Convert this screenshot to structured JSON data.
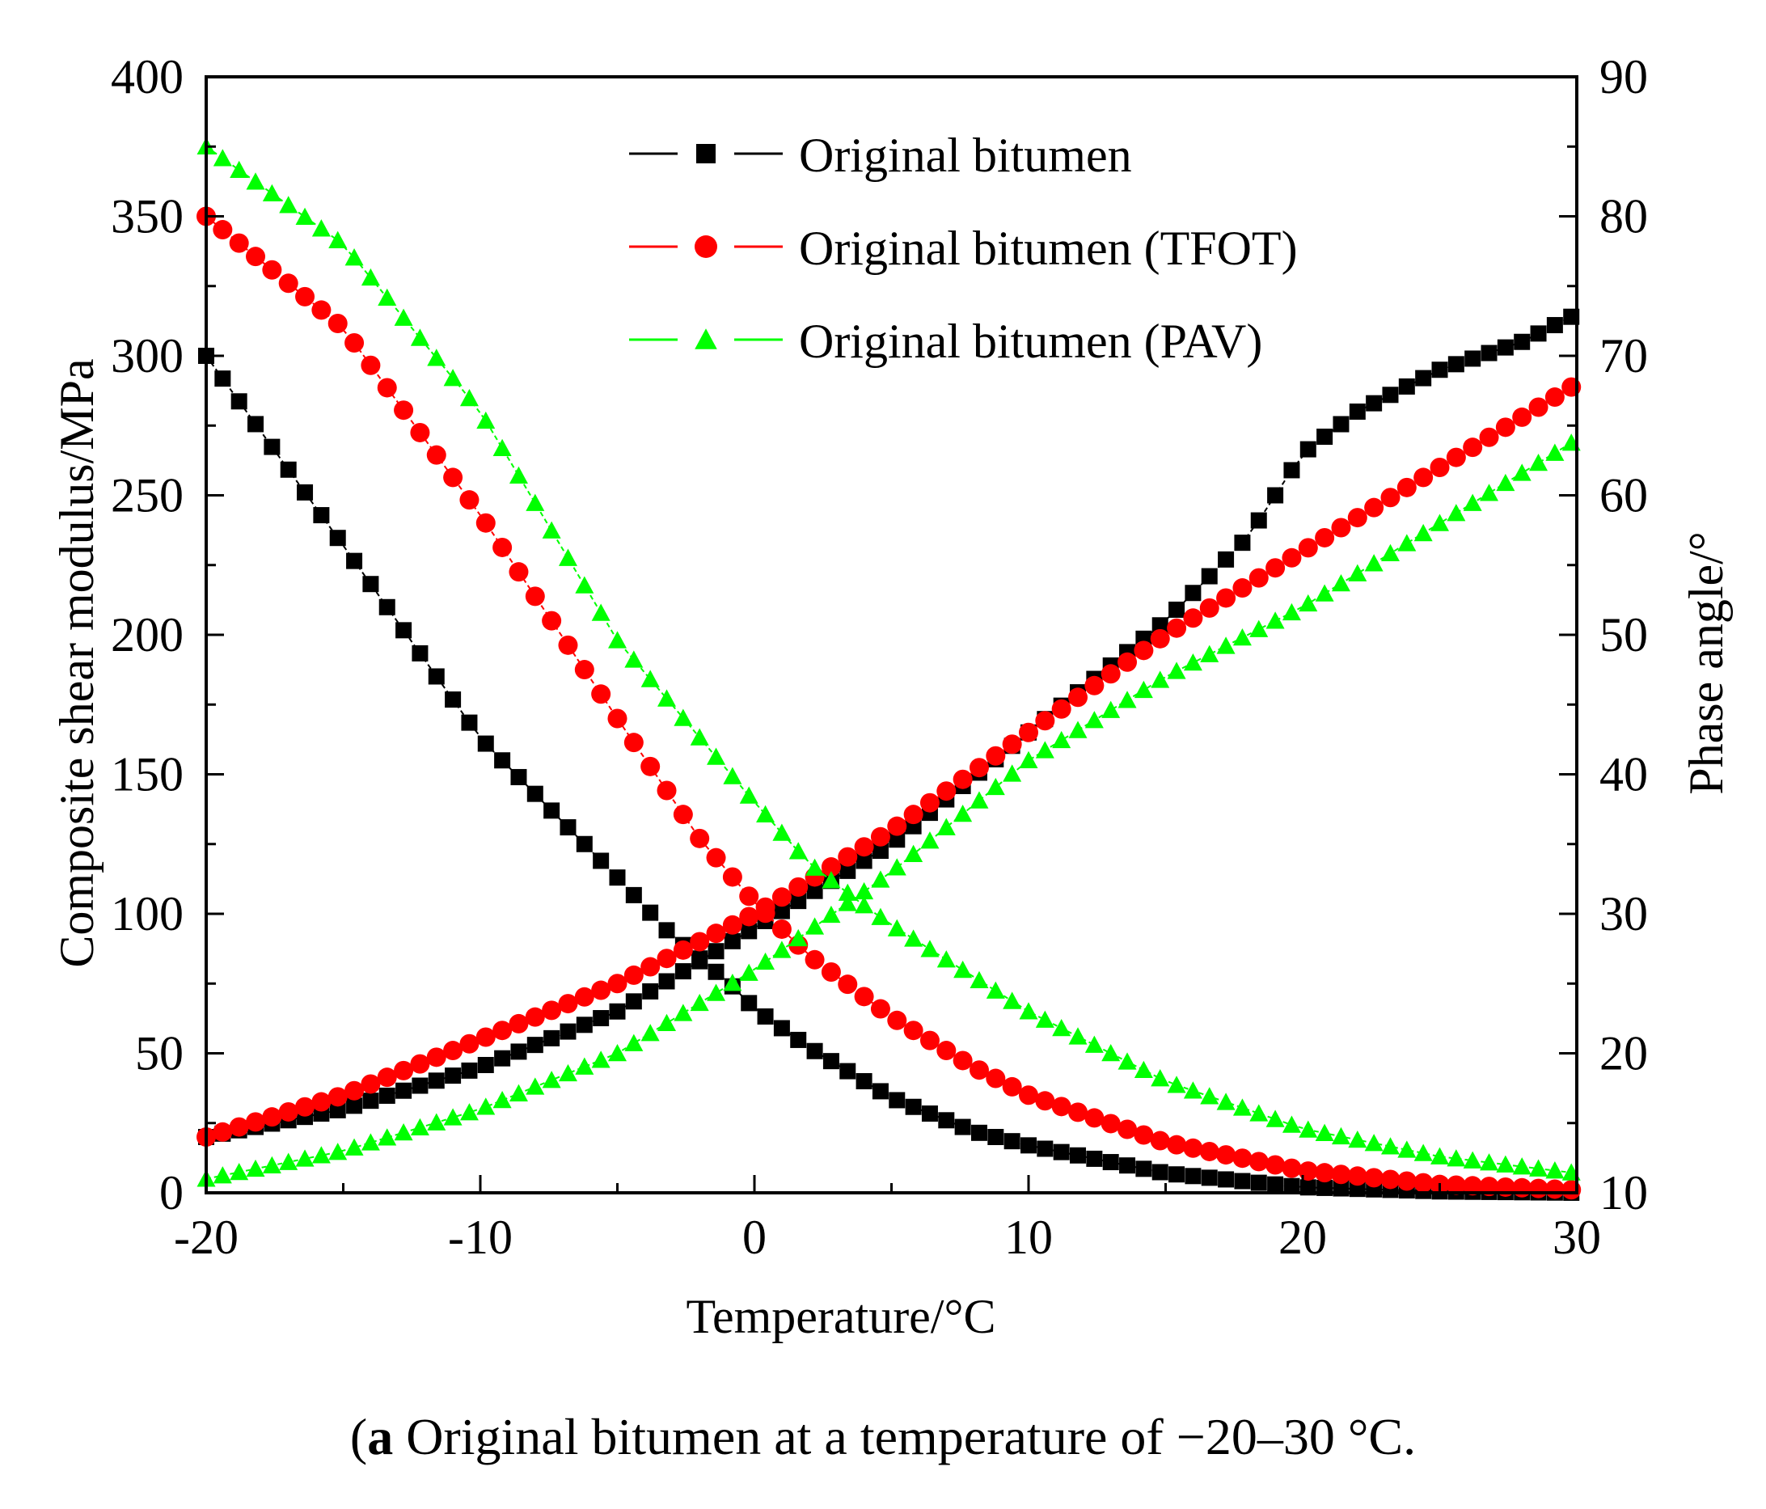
{
  "chart_data": {
    "type": "scatter",
    "title": "",
    "xlabel": "Temperature/°C",
    "ylabel_left": "Composite shear modulus/MPa",
    "ylabel_right": "Phase angle/°",
    "xlim": [
      -20,
      30
    ],
    "ylim_left": [
      0,
      400
    ],
    "ylim_right": [
      10,
      90
    ],
    "x_ticks": [
      "-20",
      "-10",
      "0",
      "10",
      "20",
      "30"
    ],
    "y_left_ticks": [
      "0",
      "50",
      "100",
      "150",
      "200",
      "250",
      "300",
      "350",
      "400"
    ],
    "y_right_ticks": [
      "10",
      "20",
      "30",
      "40",
      "50",
      "60",
      "70",
      "80",
      "90"
    ],
    "legend_position": "top-center",
    "series": [
      {
        "name": "Original bitumen",
        "marker": "square",
        "color": "#000000",
        "modulus": [
          [
            -20,
            300
          ],
          [
            -15,
            232
          ],
          [
            -10,
            163
          ],
          [
            -5,
            113
          ],
          [
            -3,
            92
          ],
          [
            -1,
            76
          ],
          [
            0,
            66
          ],
          [
            2,
            52
          ],
          [
            5,
            34
          ],
          [
            8,
            22
          ],
          [
            10,
            17
          ],
          [
            15,
            7
          ],
          [
            20,
            2
          ],
          [
            25,
            0.5
          ],
          [
            30,
            0
          ]
        ],
        "phase": [
          [
            -20,
            14
          ],
          [
            -15,
            16
          ],
          [
            -10,
            19
          ],
          [
            -5,
            23
          ],
          [
            0,
            29
          ],
          [
            5,
            35
          ],
          [
            10,
            43
          ],
          [
            15,
            51
          ],
          [
            18,
            57
          ],
          [
            20,
            63
          ],
          [
            22,
            66
          ],
          [
            25,
            69
          ],
          [
            28,
            71
          ],
          [
            30,
            73
          ]
        ]
      },
      {
        "name": "Original bitumen (TFOT)",
        "marker": "circle",
        "color": "#ff0000",
        "modulus": [
          [
            -20,
            350
          ],
          [
            -15,
            310
          ],
          [
            -10,
            243
          ],
          [
            -5,
            170
          ],
          [
            -2,
            127
          ],
          [
            0,
            104
          ],
          [
            2,
            85
          ],
          [
            5,
            63
          ],
          [
            8,
            45
          ],
          [
            10,
            35
          ],
          [
            15,
            18
          ],
          [
            20,
            8
          ],
          [
            25,
            3
          ],
          [
            30,
            1
          ]
        ],
        "phase": [
          [
            -20,
            14
          ],
          [
            -15,
            17
          ],
          [
            -10,
            21
          ],
          [
            -5,
            25
          ],
          [
            0,
            30
          ],
          [
            5,
            36
          ],
          [
            10,
            43
          ],
          [
            15,
            50
          ],
          [
            20,
            56
          ],
          [
            25,
            62
          ],
          [
            30,
            68
          ]
        ]
      },
      {
        "name": "Original bitumen (PAV)",
        "marker": "triangle",
        "color": "#00ff00",
        "modulus": [
          [
            -20,
            375
          ],
          [
            -15,
            340
          ],
          [
            -10,
            280
          ],
          [
            -5,
            198
          ],
          [
            0,
            140
          ],
          [
            2,
            118
          ],
          [
            4,
            103
          ],
          [
            5,
            96
          ],
          [
            10,
            65
          ],
          [
            15,
            40
          ],
          [
            20,
            23
          ],
          [
            25,
            13
          ],
          [
            30,
            7
          ]
        ],
        "phase": [
          [
            -20,
            11
          ],
          [
            -15,
            13
          ],
          [
            -10,
            16
          ],
          [
            -5,
            20
          ],
          [
            0,
            26
          ],
          [
            5,
            33
          ],
          [
            10,
            41
          ],
          [
            15,
            47
          ],
          [
            20,
            52
          ],
          [
            25,
            58
          ],
          [
            30,
            64
          ]
        ]
      }
    ]
  },
  "caption": {
    "label": "a",
    "text": " Original bitumen at a temperature of −20–30 °C."
  }
}
